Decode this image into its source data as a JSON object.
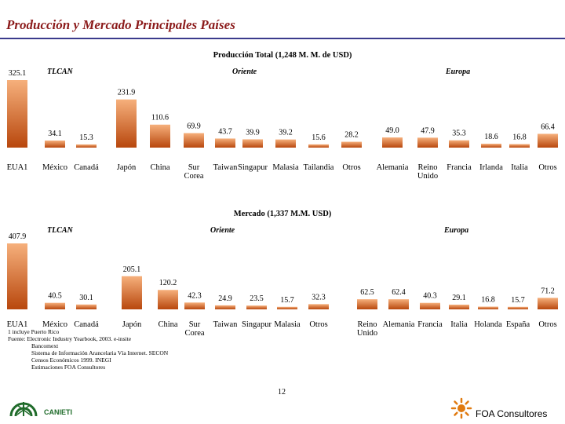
{
  "page": {
    "title": "Producción y Mercado Principales Países",
    "page_number": "12",
    "footnotes": [
      {
        "text": "1 incluye Puerto Rico",
        "indent": false
      },
      {
        "text": "Fuente: Electronic Industry Yearbook, 2003. e-insite",
        "indent": false
      },
      {
        "text": "Bancomext",
        "indent": true
      },
      {
        "text": "Sistema de Información Arancelaria Vía Internet. SECON",
        "indent": true
      },
      {
        "text": "Censos Económicos 1999. INEGI",
        "indent": true
      },
      {
        "text": "Estimaciones FOA Consultores",
        "indent": true
      }
    ],
    "logos": {
      "left_text": "CANIETI",
      "right_text": "FOA Consultores"
    },
    "colors": {
      "title": "#8b1a1a",
      "rule": "#3b3b8c",
      "bar_top": "#f6b07c",
      "bar_bottom": "#b8470d"
    }
  },
  "chart_data": [
    {
      "type": "bar",
      "title": "Producción Total (1,248 M. M. de USD)",
      "regions": [
        "TLCAN",
        "Oriente",
        "Europa"
      ],
      "categories": [
        "EUA1",
        "México",
        "Canadá",
        "Japón",
        "China",
        "Sur Corea",
        "Taiwan",
        "Singapur",
        "Malasia",
        "Tailandia",
        "Otros",
        "Alemania",
        "Reino Unido",
        "Francia",
        "Irlanda",
        "Italia",
        "Otros"
      ],
      "values": [
        325.1,
        34.1,
        15.3,
        231.9,
        110.6,
        69.9,
        43.7,
        39.9,
        39.2,
        15.6,
        28.2,
        49.0,
        47.9,
        35.3,
        18.6,
        16.8,
        66.4
      ],
      "value_labels": [
        "325.1",
        "34.1",
        "15.3",
        "231.9",
        "110.6",
        "69.9",
        "43.7",
        "39.9",
        "39.2",
        "15.6",
        "28.2",
        "49.0",
        "47.9",
        "35.3",
        "18.6",
        "16.8",
        "66.4"
      ]
    },
    {
      "type": "bar",
      "title": "Mercado (1,337 M.M. USD)",
      "regions": [
        "TLCAN",
        "Oriente",
        "Europa"
      ],
      "categories": [
        "EUA1",
        "México",
        "Canadá",
        "Japón",
        "China",
        "Sur Corea",
        "Taiwan",
        "Singapur",
        "Malasia",
        "Otros",
        "Reino Unido",
        "Alemania",
        "Francia",
        "Italia",
        "Holanda",
        "España",
        "Otros"
      ],
      "values": [
        407.9,
        40.5,
        30.1,
        205.1,
        120.2,
        42.3,
        24.9,
        23.5,
        15.7,
        32.3,
        62.5,
        62.4,
        40.3,
        29.1,
        16.8,
        15.7,
        71.2
      ],
      "value_labels": [
        "407.9",
        "40.5",
        "30.1",
        "205.1",
        "120.2",
        "42.3",
        "24.9",
        "23.5",
        "15.7",
        "32.3",
        "62.5",
        "62.4",
        "40.3",
        "29.1",
        "16.8",
        "15.7",
        "71.2"
      ]
    }
  ]
}
